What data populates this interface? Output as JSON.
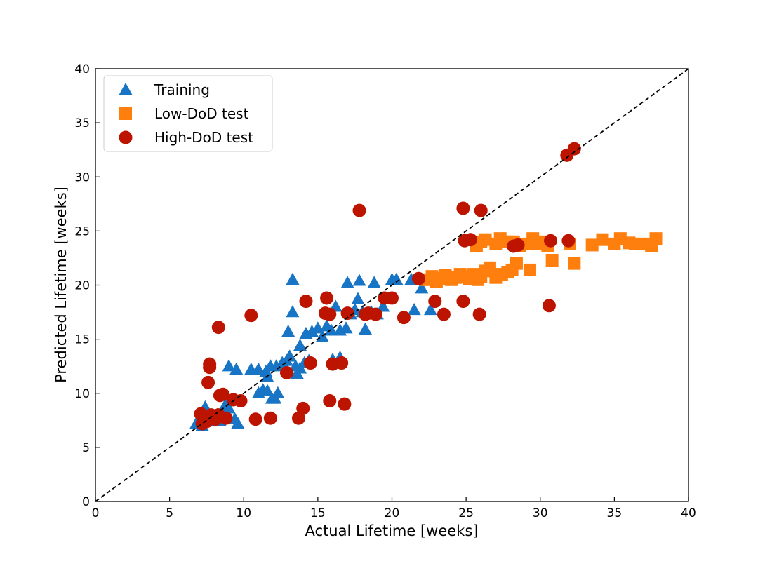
{
  "chart_data": {
    "type": "scatter",
    "title": "",
    "xlabel": "Actual Lifetime [weeks]",
    "ylabel": "Predicted Lifetime [weeks]",
    "xlim": [
      0,
      40
    ],
    "ylim": [
      0,
      40
    ],
    "xticks": [
      0,
      5,
      10,
      15,
      20,
      25,
      30,
      35,
      40
    ],
    "yticks": [
      0,
      5,
      10,
      15,
      20,
      25,
      30,
      35,
      40
    ],
    "grid": false,
    "legend_position": "top-left",
    "reference_line": {
      "name": "y = x",
      "style": "dashed",
      "color": "#000000"
    },
    "series": [
      {
        "name": "Training",
        "marker": "triangle",
        "color": "#1874c4",
        "points": [
          [
            6.8,
            7.2
          ],
          [
            7.0,
            7.5
          ],
          [
            7.2,
            7.0
          ],
          [
            7.4,
            8.7
          ],
          [
            7.6,
            7.4
          ],
          [
            7.8,
            7.8
          ],
          [
            8.0,
            7.5
          ],
          [
            8.2,
            8.0
          ],
          [
            8.4,
            7.4
          ],
          [
            8.6,
            8.2
          ],
          [
            8.8,
            9.0
          ],
          [
            9.0,
            8.6
          ],
          [
            9.2,
            9.4
          ],
          [
            9.4,
            7.6
          ],
          [
            9.6,
            7.2
          ],
          [
            9.0,
            12.5
          ],
          [
            9.5,
            12.2
          ],
          [
            10.5,
            12.2
          ],
          [
            11.0,
            12.2
          ],
          [
            11.5,
            12.0
          ],
          [
            11.8,
            12.5
          ],
          [
            12.2,
            12.5
          ],
          [
            12.6,
            12.8
          ],
          [
            12.9,
            13.0
          ],
          [
            13.1,
            13.4
          ],
          [
            13.5,
            12.5
          ],
          [
            13.8,
            12.3
          ],
          [
            14.1,
            12.8
          ],
          [
            14.4,
            13.0
          ],
          [
            11.0,
            10.0
          ],
          [
            11.3,
            10.3
          ],
          [
            11.6,
            10.2
          ],
          [
            11.9,
            9.5
          ],
          [
            12.1,
            9.5
          ],
          [
            12.3,
            10.0
          ],
          [
            11.6,
            11.5
          ],
          [
            13.0,
            15.7
          ],
          [
            13.3,
            17.5
          ],
          [
            13.6,
            11.8
          ],
          [
            13.8,
            14.4
          ],
          [
            14.2,
            15.5
          ],
          [
            14.6,
            15.7
          ],
          [
            15.0,
            16.0
          ],
          [
            15.3,
            15.2
          ],
          [
            15.6,
            16.2
          ],
          [
            15.9,
            15.8
          ],
          [
            16.2,
            18.0
          ],
          [
            16.5,
            15.8
          ],
          [
            16.9,
            16.0
          ],
          [
            17.2,
            17.3
          ],
          [
            17.5,
            17.7
          ],
          [
            17.7,
            18.7
          ],
          [
            18.0,
            17.5
          ],
          [
            18.2,
            15.9
          ],
          [
            18.6,
            17.5
          ],
          [
            19.0,
            17.3
          ],
          [
            19.4,
            18.0
          ],
          [
            13.3,
            20.5
          ],
          [
            17.0,
            20.2
          ],
          [
            17.8,
            20.4
          ],
          [
            18.8,
            20.2
          ],
          [
            20.0,
            20.5
          ],
          [
            20.3,
            20.5
          ],
          [
            21.3,
            20.5
          ],
          [
            21.5,
            17.7
          ],
          [
            22.0,
            19.7
          ],
          [
            22.6,
            17.7
          ],
          [
            16.0,
            13.1
          ],
          [
            16.5,
            13.3
          ]
        ]
      },
      {
        "name": "Low-DoD test",
        "marker": "square",
        "color": "#ff7f0e",
        "points": [
          [
            22.3,
            20.5
          ],
          [
            22.7,
            20.8
          ],
          [
            23.0,
            20.3
          ],
          [
            23.3,
            20.6
          ],
          [
            23.6,
            20.9
          ],
          [
            24.0,
            20.5
          ],
          [
            24.3,
            20.7
          ],
          [
            24.6,
            21.0
          ],
          [
            24.9,
            20.8
          ],
          [
            25.2,
            20.6
          ],
          [
            25.5,
            21.0
          ],
          [
            25.8,
            20.5
          ],
          [
            26.0,
            20.8
          ],
          [
            26.3,
            21.3
          ],
          [
            26.6,
            21.6
          ],
          [
            27.0,
            20.7
          ],
          [
            27.4,
            21.0
          ],
          [
            27.8,
            21.2
          ],
          [
            28.1,
            21.4
          ],
          [
            28.4,
            22.0
          ],
          [
            29.3,
            21.4
          ],
          [
            25.7,
            23.6
          ],
          [
            26.0,
            24.0
          ],
          [
            26.3,
            24.2
          ],
          [
            27.0,
            23.8
          ],
          [
            27.3,
            24.3
          ],
          [
            27.8,
            24.0
          ],
          [
            28.2,
            24.0
          ],
          [
            28.6,
            23.6
          ],
          [
            29.0,
            23.8
          ],
          [
            29.5,
            24.3
          ],
          [
            29.8,
            23.8
          ],
          [
            30.0,
            24.0
          ],
          [
            30.5,
            23.6
          ],
          [
            30.8,
            22.3
          ],
          [
            32.0,
            23.8
          ],
          [
            32.3,
            22.0
          ],
          [
            33.5,
            23.7
          ],
          [
            34.2,
            24.2
          ],
          [
            35.0,
            23.8
          ],
          [
            35.4,
            24.3
          ],
          [
            36.0,
            23.9
          ],
          [
            36.4,
            23.8
          ],
          [
            37.0,
            23.8
          ],
          [
            37.5,
            23.6
          ],
          [
            37.8,
            24.3
          ]
        ]
      },
      {
        "name": "High-DoD test",
        "marker": "circle",
        "color": "#bd1400",
        "points": [
          [
            7.1,
            8.1
          ],
          [
            7.2,
            7.2
          ],
          [
            7.5,
            7.4
          ],
          [
            7.7,
            12.7
          ],
          [
            7.7,
            12.4
          ],
          [
            7.6,
            11.0
          ],
          [
            7.8,
            8.0
          ],
          [
            8.1,
            7.6
          ],
          [
            8.3,
            8.0
          ],
          [
            8.3,
            16.1
          ],
          [
            8.4,
            9.8
          ],
          [
            8.6,
            9.9
          ],
          [
            8.8,
            7.7
          ],
          [
            9.3,
            9.4
          ],
          [
            9.8,
            9.3
          ],
          [
            10.5,
            17.2
          ],
          [
            10.8,
            7.6
          ],
          [
            11.8,
            7.7
          ],
          [
            12.9,
            11.9
          ],
          [
            13.7,
            7.7
          ],
          [
            14.0,
            8.6
          ],
          [
            14.2,
            18.5
          ],
          [
            14.5,
            12.8
          ],
          [
            15.5,
            17.4
          ],
          [
            15.6,
            18.8
          ],
          [
            15.8,
            9.3
          ],
          [
            15.8,
            17.3
          ],
          [
            16.0,
            12.7
          ],
          [
            16.6,
            12.8
          ],
          [
            16.8,
            9.0
          ],
          [
            17.0,
            17.4
          ],
          [
            17.8,
            26.9
          ],
          [
            18.2,
            17.3
          ],
          [
            18.4,
            17.4
          ],
          [
            18.9,
            17.3
          ],
          [
            19.5,
            18.8
          ],
          [
            20.0,
            18.8
          ],
          [
            20.8,
            17.0
          ],
          [
            21.8,
            20.6
          ],
          [
            22.9,
            18.5
          ],
          [
            23.5,
            17.3
          ],
          [
            24.8,
            27.1
          ],
          [
            24.8,
            18.5
          ],
          [
            24.9,
            24.1
          ],
          [
            25.3,
            24.2
          ],
          [
            25.9,
            17.3
          ],
          [
            26.0,
            26.9
          ],
          [
            28.2,
            23.6
          ],
          [
            28.5,
            23.7
          ],
          [
            30.6,
            18.1
          ],
          [
            30.7,
            24.1
          ],
          [
            31.8,
            32.0
          ],
          [
            31.9,
            24.1
          ],
          [
            32.3,
            32.6
          ]
        ]
      }
    ]
  }
}
